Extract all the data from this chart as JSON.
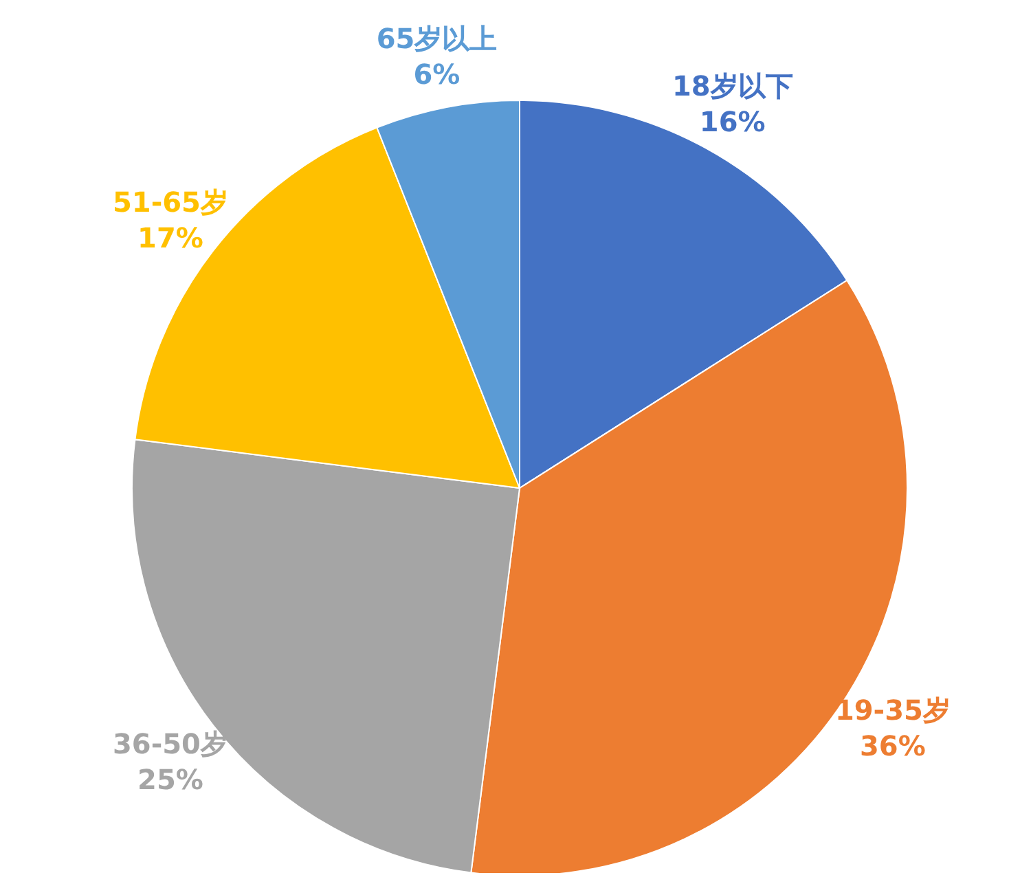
{
  "chart_data": {
    "type": "pie",
    "categories": [
      "18岁以下",
      "19-35岁",
      "36-50岁",
      "51-65岁",
      "65岁以上"
    ],
    "values": [
      16,
      36,
      25,
      17,
      6
    ],
    "colors": [
      "#4472c4",
      "#ed7d31",
      "#a5a5a5",
      "#ffc000",
      "#5b9bd5"
    ],
    "value_labels": [
      "16%",
      "36%",
      "25%",
      "17%",
      "6%"
    ],
    "legend": false
  }
}
